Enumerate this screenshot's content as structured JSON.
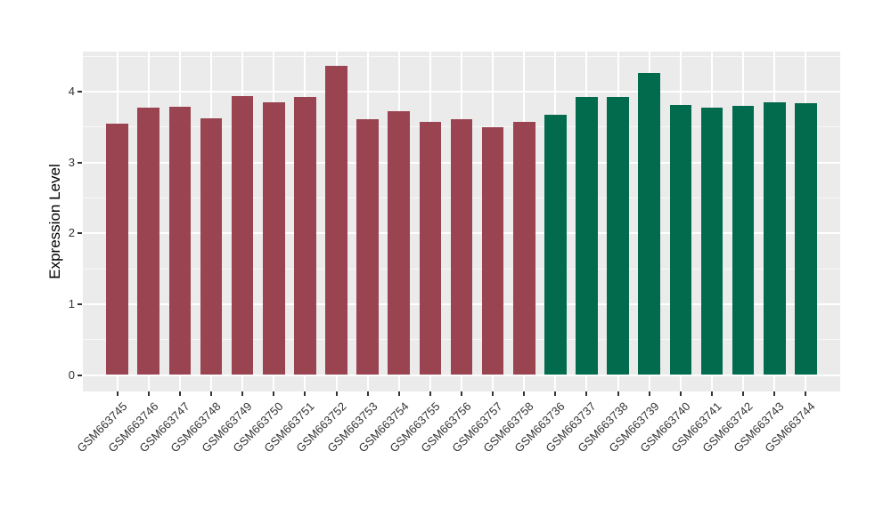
{
  "chart_data": {
    "type": "bar",
    "title": "",
    "xlabel": "",
    "ylabel": "Expression Level",
    "ylim": [
      0,
      4.57
    ],
    "yticks": [
      0,
      1,
      2,
      3,
      4
    ],
    "yticks_minor": [
      0.5,
      1.5,
      2.5,
      3.5,
      4.5
    ],
    "grid": "white major and minor gridlines on gray panel, vertical gridline at each category",
    "legend_position": "none",
    "categories": [
      "GSM663745",
      "GSM663746",
      "GSM663747",
      "GSM663748",
      "GSM663749",
      "GSM663750",
      "GSM663751",
      "GSM663752",
      "GSM663753",
      "GSM663754",
      "GSM663755",
      "GSM663756",
      "GSM663757",
      "GSM663758",
      "GSM663736",
      "GSM663737",
      "GSM663738",
      "GSM663739",
      "GSM663740",
      "GSM663741",
      "GSM663742",
      "GSM663743",
      "GSM663744"
    ],
    "values": [
      3.55,
      3.77,
      3.79,
      3.62,
      3.94,
      3.85,
      3.92,
      4.37,
      3.61,
      3.72,
      3.57,
      3.61,
      3.5,
      3.57,
      3.67,
      3.92,
      3.93,
      4.27,
      3.81,
      3.77,
      3.8,
      3.85,
      3.84
    ],
    "bar_groups": [
      "maroon",
      "maroon",
      "maroon",
      "maroon",
      "maroon",
      "maroon",
      "maroon",
      "maroon",
      "maroon",
      "maroon",
      "maroon",
      "maroon",
      "maroon",
      "maroon",
      "green",
      "green",
      "green",
      "green",
      "green",
      "green",
      "green",
      "green",
      "green"
    ],
    "group_colors": {
      "maroon": "#9A4451",
      "green": "#036B4D"
    },
    "colors": {
      "panel_background": "#EBEBEB",
      "figure_background": "#FFFFFF",
      "gridline": "#FFFFFF",
      "tick_mark": "#333333",
      "tick_label": "#333333",
      "axis_title": "#000000"
    }
  }
}
